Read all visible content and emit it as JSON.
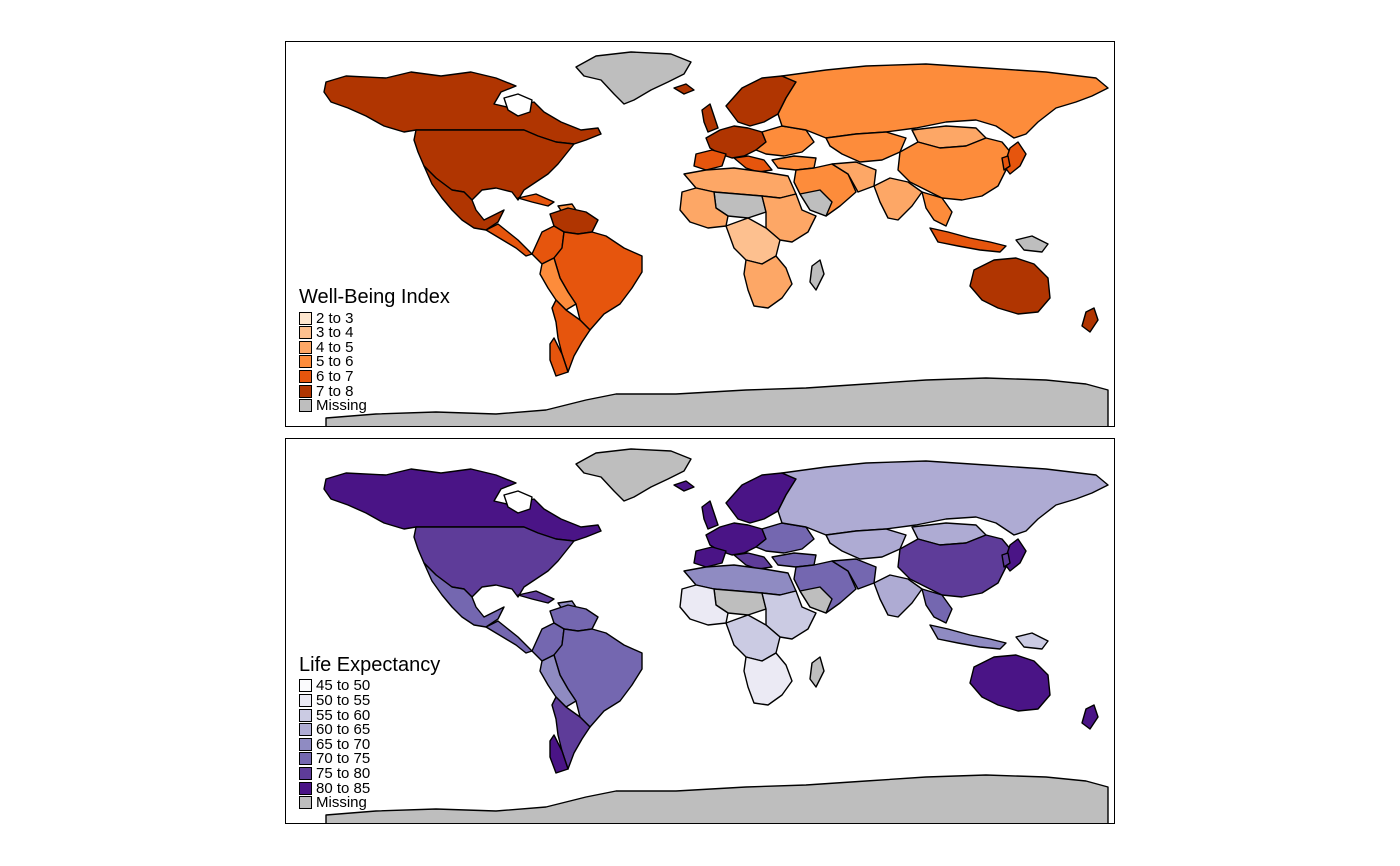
{
  "panels": [
    {
      "legend_title": "Well-Being Index",
      "palette": {
        "c1": "#fee6ce",
        "c2": "#fdc08f",
        "c3": "#fda766",
        "c4": "#fd8c3b",
        "c5": "#e6550d",
        "c6": "#b03501",
        "missing": "#bebebe"
      },
      "legend_items": [
        {
          "label": "2 to 3",
          "color": "#fee6ce"
        },
        {
          "label": "3 to 4",
          "color": "#fdc08f"
        },
        {
          "label": "4 to 5",
          "color": "#fda766"
        },
        {
          "label": "5 to 6",
          "color": "#fd8c3b"
        },
        {
          "label": "6 to 7",
          "color": "#e6550d"
        },
        {
          "label": "7 to 8",
          "color": "#b03501"
        },
        {
          "label": "Missing",
          "color": "#bebebe"
        }
      ]
    },
    {
      "legend_title": "Life Expectancy",
      "palette": {
        "c1": "#fbfbfd",
        "c2": "#ebeaf4",
        "c3": "#cbcbe3",
        "c4": "#aeabd3",
        "c5": "#8f8bc2",
        "c6": "#7467b0",
        "c7": "#5e3c99",
        "c8": "#4a1486",
        "missing": "#bebebe"
      },
      "legend_items": [
        {
          "label": "45 to 50",
          "color": "#fbfbfd"
        },
        {
          "label": "50 to 55",
          "color": "#ebeaf4"
        },
        {
          "label": "55 to 60",
          "color": "#cbcbe3"
        },
        {
          "label": "60 to 65",
          "color": "#aeabd3"
        },
        {
          "label": "65 to 70",
          "color": "#8f8bc2"
        },
        {
          "label": "70 to 75",
          "color": "#7467b0"
        },
        {
          "label": "75 to 80",
          "color": "#5e3c99"
        },
        {
          "label": "80 to 85",
          "color": "#4a1486"
        },
        {
          "label": "Missing",
          "color": "#bebebe"
        }
      ]
    }
  ]
}
